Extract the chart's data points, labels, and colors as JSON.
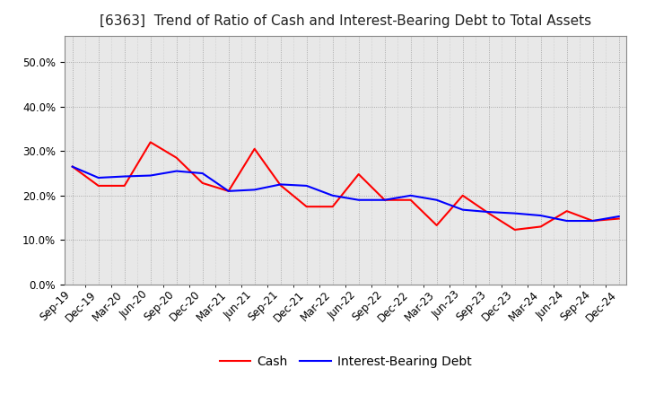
{
  "title": "[6363]  Trend of Ratio of Cash and Interest-Bearing Debt to Total Assets",
  "x_labels": [
    "Sep-19",
    "Dec-19",
    "Mar-20",
    "Jun-20",
    "Sep-20",
    "Dec-20",
    "Mar-21",
    "Jun-21",
    "Sep-21",
    "Dec-21",
    "Mar-22",
    "Jun-22",
    "Sep-22",
    "Dec-22",
    "Mar-23",
    "Jun-23",
    "Sep-23",
    "Dec-23",
    "Mar-24",
    "Jun-24",
    "Sep-24",
    "Dec-24"
  ],
  "cash": [
    0.265,
    0.222,
    0.222,
    0.32,
    0.285,
    0.228,
    0.21,
    0.305,
    0.223,
    0.175,
    0.175,
    0.248,
    0.19,
    0.19,
    0.133,
    0.2,
    0.16,
    0.123,
    0.13,
    0.165,
    0.143,
    0.148
  ],
  "ibd": [
    0.265,
    0.24,
    0.243,
    0.245,
    0.255,
    0.25,
    0.21,
    0.213,
    0.225,
    0.222,
    0.2,
    0.19,
    0.19,
    0.2,
    0.19,
    0.168,
    0.163,
    0.16,
    0.155,
    0.143,
    0.143,
    0.153
  ],
  "cash_color": "#ff0000",
  "ibd_color": "#0000ff",
  "ylim": [
    0.0,
    0.56
  ],
  "yticks": [
    0.0,
    0.1,
    0.2,
    0.3,
    0.4,
    0.5
  ],
  "background_color": "#ffffff",
  "plot_bg_color": "#e8e8e8",
  "grid_color": "#aaaaaa",
  "title_fontsize": 11,
  "tick_fontsize": 8.5,
  "legend_fontsize": 10
}
